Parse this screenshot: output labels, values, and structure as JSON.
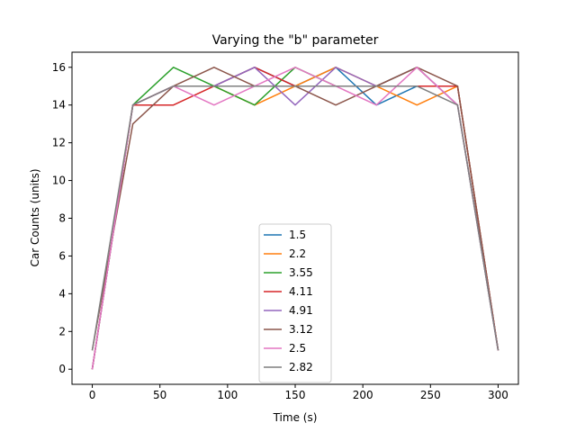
{
  "chart_data": {
    "type": "line",
    "title": "Varying the \"b\" parameter",
    "xlabel": "Time (s)",
    "ylabel": "Car Counts (units)",
    "xlim": [
      -15,
      315
    ],
    "ylim": [
      -0.8,
      16.8
    ],
    "xticks": [
      0,
      50,
      100,
      150,
      200,
      250,
      300
    ],
    "yticks": [
      0,
      2,
      4,
      6,
      8,
      10,
      12,
      14,
      16
    ],
    "grid": false,
    "legend_position": "lower center",
    "x": [
      0,
      30,
      60,
      90,
      120,
      150,
      180,
      210,
      240,
      270,
      300
    ],
    "series": [
      {
        "name": "1.5",
        "color": "#1f77b4",
        "values": [
          0,
          14,
          15,
          15,
          16,
          15,
          16,
          14,
          15,
          15,
          1
        ]
      },
      {
        "name": "2.2",
        "color": "#ff7f0e",
        "values": [
          0,
          14,
          15,
          15,
          14,
          15,
          16,
          15,
          14,
          15,
          1
        ]
      },
      {
        "name": "3.55",
        "color": "#2ca02c",
        "values": [
          0,
          14,
          16,
          15,
          14,
          16,
          15,
          15,
          16,
          14,
          1
        ]
      },
      {
        "name": "4.11",
        "color": "#d62728",
        "values": [
          0,
          14,
          14,
          15,
          16,
          15,
          15,
          15,
          15,
          15,
          1
        ]
      },
      {
        "name": "4.91",
        "color": "#9467bd",
        "values": [
          0,
          14,
          15,
          15,
          16,
          14,
          16,
          15,
          16,
          14,
          1
        ]
      },
      {
        "name": "3.12",
        "color": "#8c564b",
        "values": [
          1,
          13,
          15,
          16,
          15,
          15,
          14,
          15,
          16,
          15,
          1
        ]
      },
      {
        "name": "2.5",
        "color": "#e377c2",
        "values": [
          0,
          14,
          15,
          14,
          15,
          16,
          15,
          14,
          16,
          14,
          1
        ]
      },
      {
        "name": "2.82",
        "color": "#7f7f7f",
        "values": [
          1,
          14,
          15,
          15,
          15,
          15,
          15,
          15,
          15,
          14,
          1
        ]
      }
    ]
  }
}
